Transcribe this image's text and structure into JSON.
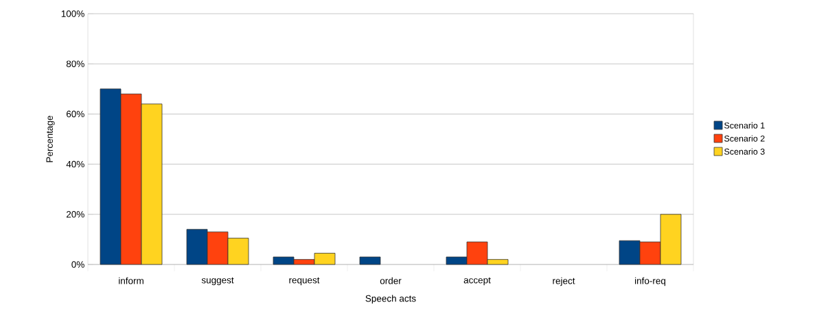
{
  "chart_data": {
    "type": "bar",
    "xlabel": "Speech acts",
    "ylabel": "Percentage",
    "categories": [
      "inform",
      "suggest",
      "request",
      "order",
      "accept",
      "reject",
      "info-req"
    ],
    "series": [
      {
        "name": "Scenario 1",
        "color": "#004586",
        "values": [
          70,
          14,
          3,
          3,
          3,
          0,
          9.5
        ]
      },
      {
        "name": "Scenario 2",
        "color": "#ff420e",
        "values": [
          68,
          13,
          2,
          0,
          9,
          0,
          9
        ]
      },
      {
        "name": "Scenario 3",
        "color": "#ffd320",
        "values": [
          64,
          10.5,
          4.5,
          0,
          2,
          0,
          20
        ]
      }
    ],
    "ylim": [
      0,
      100
    ],
    "yticks": [
      {
        "value": 0,
        "label": "0%"
      },
      {
        "value": 20,
        "label": "20%"
      },
      {
        "value": 40,
        "label": "40%"
      },
      {
        "value": 60,
        "label": "60%"
      },
      {
        "value": 80,
        "label": "80%"
      },
      {
        "value": 100,
        "label": "100%"
      }
    ],
    "grid": "y",
    "legend": "right"
  }
}
